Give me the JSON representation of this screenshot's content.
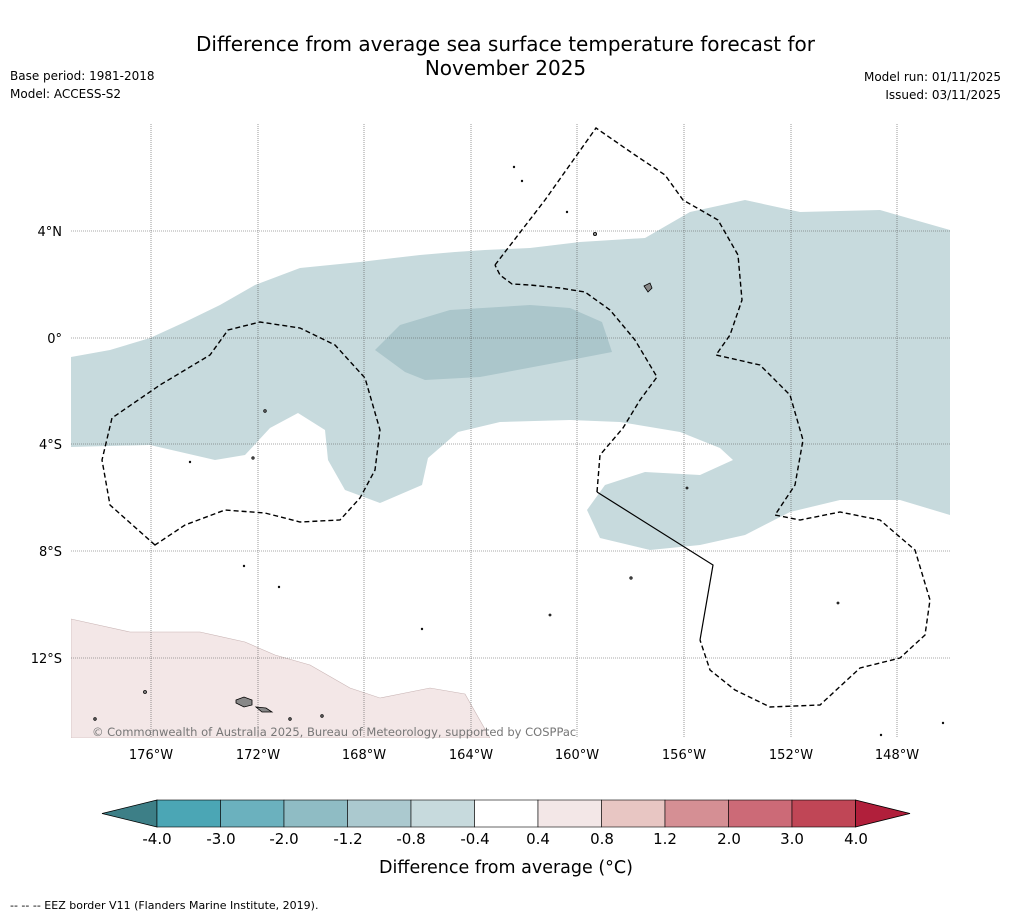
{
  "header": {
    "title_line1": "Difference from average sea surface temperature forecast for",
    "title_line2": "November 2025",
    "base_period": "Base period: 1981-2018",
    "model": "Model: ACCESS-S2",
    "model_run": "Model run: 01/11/2025",
    "issued": "Issued: 03/11/2025"
  },
  "map": {
    "lat_labels": [
      "4°N",
      "0°",
      "4°S",
      "8°S",
      "12°S"
    ],
    "lon_labels": [
      "176°W",
      "172°W",
      "168°W",
      "164°W",
      "160°W",
      "156°W",
      "152°W",
      "148°W"
    ],
    "copyright": "© Commonwealth of Australia 2025, Bureau of Meteorology, supported by COSPPac"
  },
  "legend": {
    "ticks": [
      "-4.0",
      "-3.0",
      "-2.0",
      "-1.2",
      "-0.8",
      "-0.4",
      "0.4",
      "0.8",
      "1.2",
      "2.0",
      "3.0",
      "4.0"
    ],
    "colors": [
      "#3d7f87",
      "#4ba6b5",
      "#6bb1be",
      "#8fbcc4",
      "#abc9cf",
      "#c7dadd",
      "#ffffff",
      "#f3e7e7",
      "#e8c6c3",
      "#d58f94",
      "#cc6a77",
      "#c04656",
      "#b11f3b"
    ],
    "label": "Difference from average (°C)"
  },
  "footer": {
    "note": "--  --  -- EEZ border V11 (Flanders Marine Institute, 2019)."
  }
}
